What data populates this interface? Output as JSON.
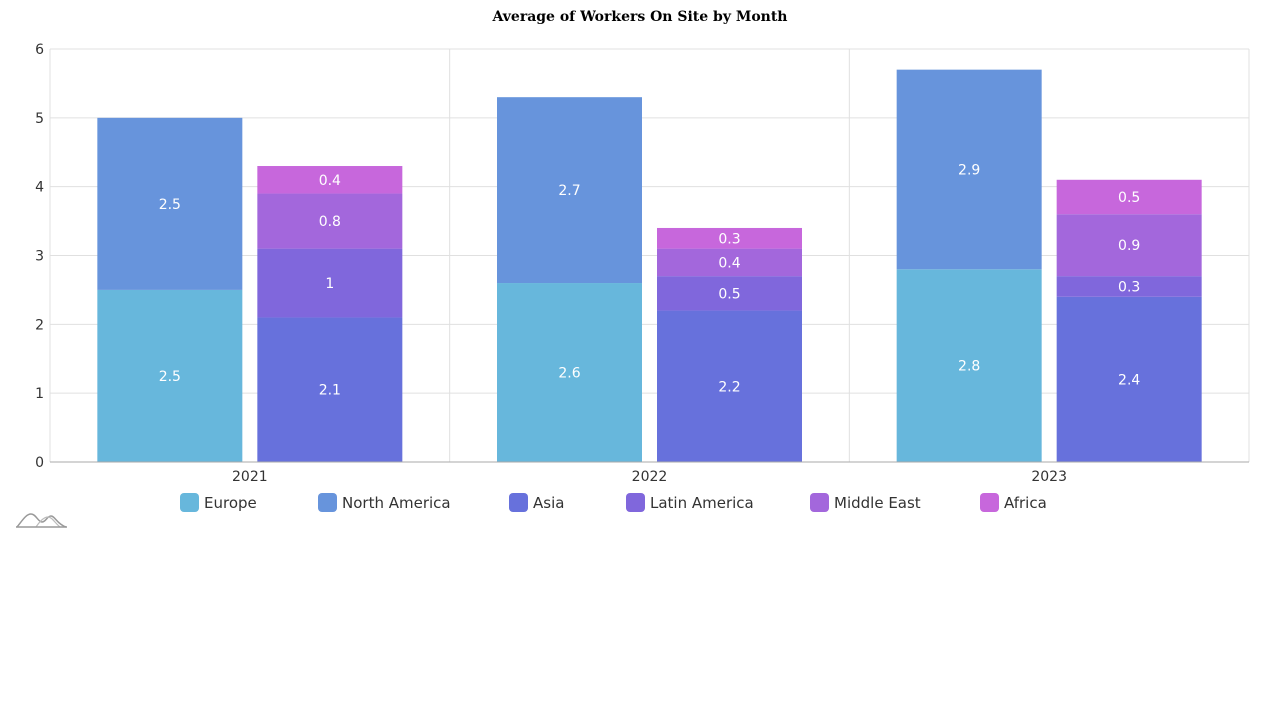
{
  "chart_data": {
    "type": "bar",
    "stacked": true,
    "title": "Average of Workers On Site by Month",
    "categories": [
      "2021",
      "2022",
      "2023"
    ],
    "ylim": [
      0,
      6
    ],
    "yticks": [
      0,
      1,
      2,
      3,
      4,
      5,
      6
    ],
    "grid": true,
    "legend_position": "bottom",
    "stacks": [
      {
        "series": [
          "Europe",
          "North America"
        ]
      },
      {
        "series": [
          "Asia",
          "Latin America",
          "Middle East",
          "Africa"
        ]
      }
    ],
    "series": [
      {
        "name": "Europe",
        "color": "#67b7dc",
        "stack": 0,
        "values": [
          2.5,
          2.6,
          2.8
        ]
      },
      {
        "name": "North America",
        "color": "#6794dc",
        "stack": 0,
        "values": [
          2.5,
          2.7,
          2.9
        ]
      },
      {
        "name": "Asia",
        "color": "#6771dc",
        "stack": 1,
        "values": [
          2.1,
          2.2,
          2.4
        ]
      },
      {
        "name": "Latin America",
        "color": "#8067dc",
        "stack": 1,
        "values": [
          1,
          0.5,
          0.3
        ]
      },
      {
        "name": "Middle East",
        "color": "#a367dc",
        "stack": 1,
        "values": [
          0.8,
          0.4,
          0.9
        ]
      },
      {
        "name": "Africa",
        "color": "#c767dc",
        "stack": 1,
        "values": [
          0.4,
          0.3,
          0.5
        ]
      }
    ]
  }
}
